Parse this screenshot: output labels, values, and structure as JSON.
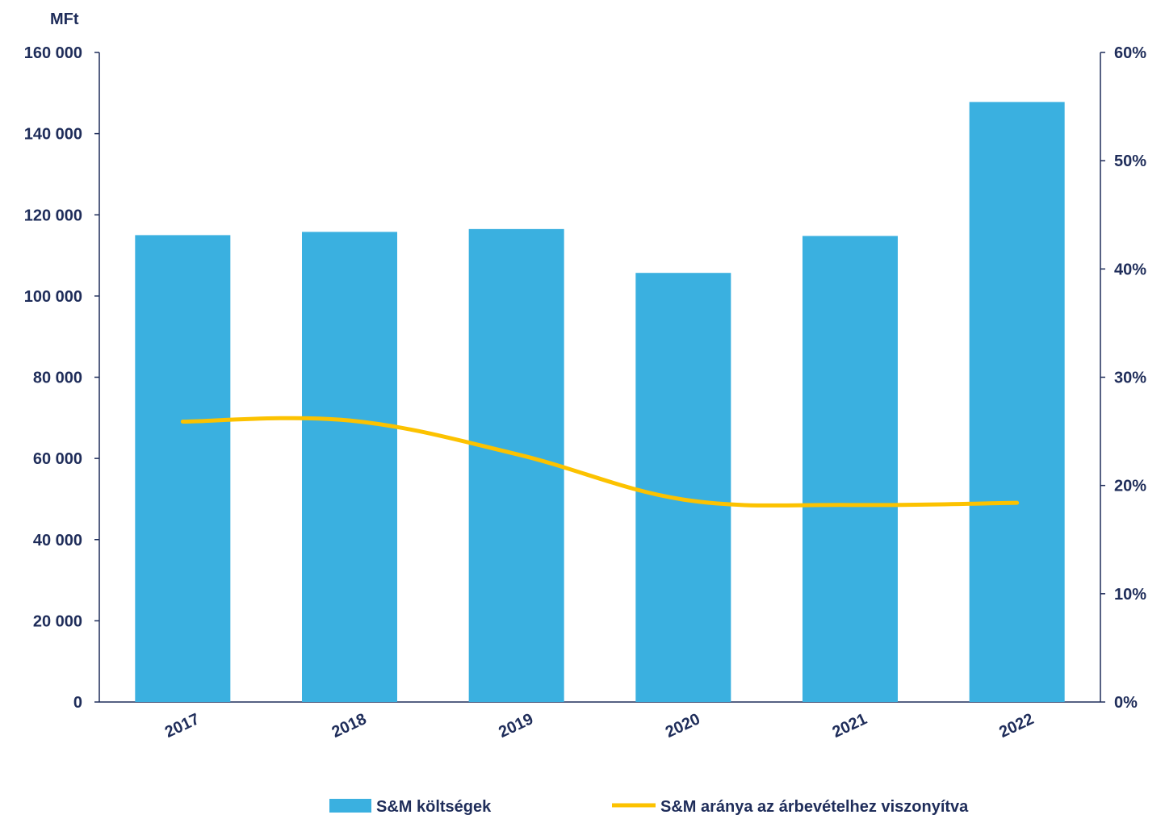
{
  "chart_data": {
    "type": "bar+line",
    "categories": [
      "2017",
      "2018",
      "2019",
      "2020",
      "2021",
      "2022"
    ],
    "series": [
      {
        "name": "S&M költségek",
        "type": "bar",
        "axis": "left",
        "values": [
          115000,
          115800,
          116500,
          105700,
          114800,
          147800
        ],
        "color": "#3ab0e0"
      },
      {
        "name": "S&M aránya az árbevételhez viszonyítva",
        "type": "line",
        "axis": "right",
        "values": [
          0.259,
          0.26,
          0.229,
          0.187,
          0.182,
          0.184
        ],
        "color": "#fcc200"
      }
    ],
    "y_left": {
      "unit": "MFt",
      "ylim": [
        0,
        160000
      ],
      "ticks": [
        0,
        20000,
        40000,
        60000,
        80000,
        100000,
        120000,
        140000,
        160000
      ],
      "tick_labels": [
        "0",
        "20 000",
        "40 000",
        "60 000",
        "80 000",
        "100 000",
        "120 000",
        "140 000",
        "160 000"
      ]
    },
    "y_right": {
      "ylim": [
        0,
        0.6
      ],
      "ticks": [
        0,
        0.1,
        0.2,
        0.3,
        0.4,
        0.5,
        0.6
      ],
      "tick_labels": [
        "0%",
        "10%",
        "20%",
        "30%",
        "40%",
        "50%",
        "60%"
      ]
    },
    "grid": false,
    "legend_position": "bottom",
    "axis_color": "#1f2d5a"
  }
}
